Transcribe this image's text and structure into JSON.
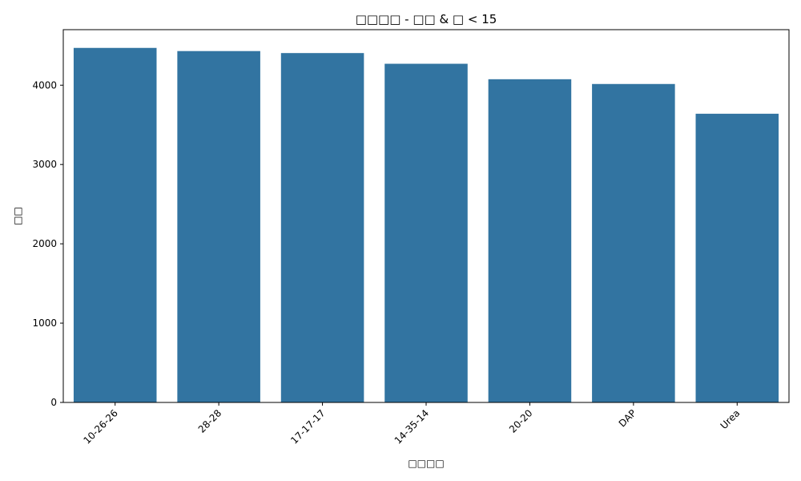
{
  "chart_data": {
    "type": "bar",
    "title": "□□□□ - □□ & □ < 15",
    "xlabel": "□□□□",
    "ylabel": "□□",
    "categories": [
      "10-26-26",
      "28-28",
      "17-17-17",
      "14-35-14",
      "20-20",
      "DAP",
      "Urea"
    ],
    "values": [
      4470,
      4430,
      4405,
      4270,
      4075,
      4015,
      3640
    ],
    "ylim": [
      0,
      4700
    ],
    "yticks": [
      0,
      1000,
      2000,
      3000,
      4000
    ],
    "grid": false,
    "bar_color": "#3274a1"
  }
}
